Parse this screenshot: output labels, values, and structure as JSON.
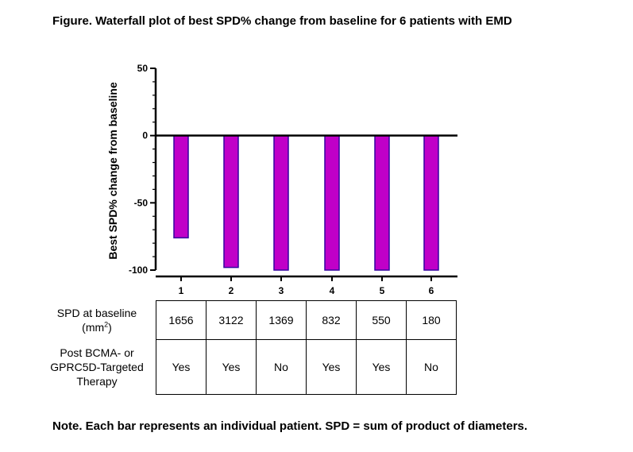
{
  "title": "Figure. Waterfall plot of best SPD% change from baseline for 6 patients with EMD",
  "note": "Note. Each bar represents an individual patient. SPD = sum of product of diameters.",
  "chart_data": {
    "type": "bar",
    "title": "Figure. Waterfall plot of best SPD% change from baseline for 6 patients with EMD",
    "ylabel": "Best SPD% change from baseline",
    "xlabel": "",
    "categories": [
      "1",
      "2",
      "3",
      "4",
      "5",
      "6"
    ],
    "values": [
      -76,
      -98,
      -100,
      -100,
      -100,
      -100
    ],
    "ylim": [
      -100,
      50
    ],
    "yticks": [
      "50",
      "0",
      "-50",
      "-100"
    ],
    "yticks_values": [
      50,
      0,
      -50,
      -100
    ],
    "bar_color": "#C000C8",
    "bar_edge_color": "#3300A0",
    "grid": false,
    "legend": "none"
  },
  "table": {
    "rows": [
      {
        "label": "SPD at baseline",
        "label2": "(mm",
        "label2_sup": "2",
        "label2_end": ")",
        "values": [
          "1656",
          "3122",
          "1369",
          "832",
          "550",
          "180"
        ]
      },
      {
        "label": "Post BCMA- or",
        "label2": "GPRC5D-Targeted",
        "label3": "Therapy",
        "values": [
          "Yes",
          "Yes",
          "No",
          "Yes",
          "Yes",
          "No"
        ]
      }
    ]
  }
}
